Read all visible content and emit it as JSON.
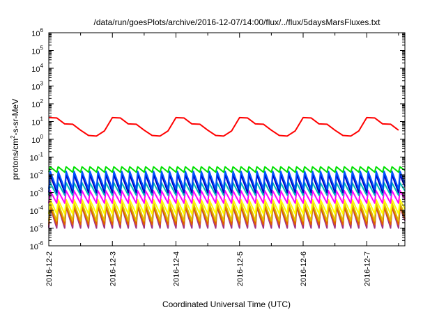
{
  "chart_data": {
    "type": "line",
    "title": "/data/run/goesPlots/archive/2016-12-07/14:00/flux/../flux/5daysMarsFluxes.txt",
    "xlabel": "Coordinated Universal Time (UTC)",
    "ylabel": {
      "pre": "protons/cm",
      "sup": "2",
      "post": "-s-sr-MeV"
    },
    "yscale": "log",
    "ylim_exp": [
      -6,
      6
    ],
    "y_tick_exponents": [
      "-6",
      "-5",
      "-4",
      "-3",
      "-2",
      "-1",
      "0",
      "1",
      "2",
      "3",
      "4",
      "5",
      "6"
    ],
    "xlim_days": [
      0,
      5.6
    ],
    "x_ticks": [
      {
        "day": 0,
        "label": "2016-12-2"
      },
      {
        "day": 1,
        "label": "2016-12-3"
      },
      {
        "day": 2,
        "label": "2016-12-4"
      },
      {
        "day": 3,
        "label": "2016-12-5"
      },
      {
        "day": 4,
        "label": "2016-12-6"
      },
      {
        "day": 5,
        "label": "2016-12-7"
      }
    ],
    "grid": false,
    "legend": "none",
    "cycles_per_day": 8,
    "series": [
      {
        "color": "#ff0000",
        "kind": "red",
        "base": 0.45,
        "amp": 0.85,
        "noise": 0.08
      },
      {
        "color": "#00e000",
        "kind": "saw",
        "low": -1.85,
        "high": -1.55
      },
      {
        "color": "#0055ff",
        "kind": "saw",
        "low": -2.8,
        "high": -1.8
      },
      {
        "color": "#0000bb",
        "kind": "saw",
        "low": -3.0,
        "high": -2.0
      },
      {
        "color": "#00bbbb",
        "kind": "saw",
        "low": -3.15,
        "high": -2.45
      },
      {
        "color": "#ff00ff",
        "kind": "saw",
        "low": -3.6,
        "high": -2.9
      },
      {
        "color": "#ffff00",
        "kind": "saw",
        "low": -4.2,
        "high": -3.4
      },
      {
        "color": "#ddbb00",
        "kind": "saw",
        "low": -4.6,
        "high": -3.6
      },
      {
        "color": "#e06000",
        "kind": "saw",
        "low": -4.8,
        "high": -3.8
      },
      {
        "color": "#aa3377",
        "kind": "saw",
        "low": -4.95,
        "high": -3.6
      },
      {
        "color": "#993399",
        "kind": "saw",
        "low": -5.0,
        "high": -3.8
      }
    ]
  }
}
